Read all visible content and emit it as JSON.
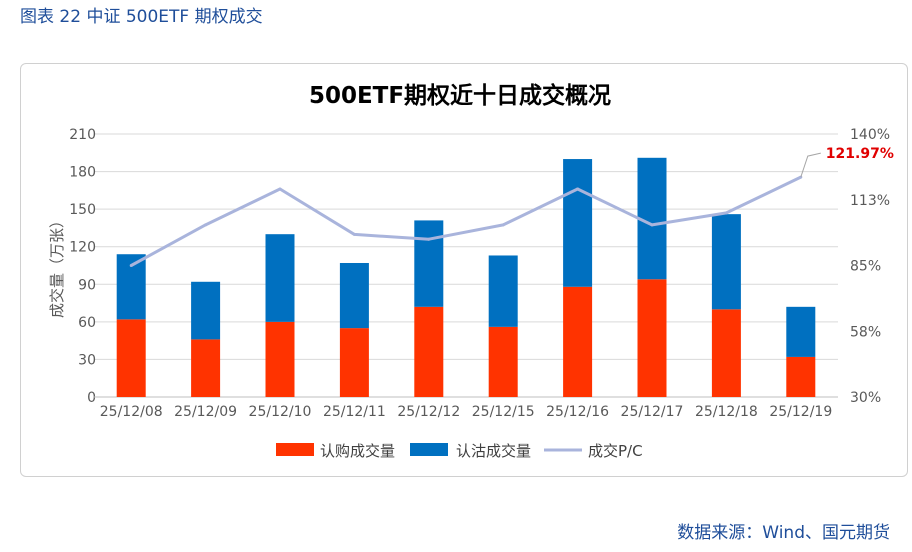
{
  "figure_caption": "图表 22 中证 500ETF 期权成交",
  "source_note": "数据来源：Wind、国元期货",
  "colors": {
    "call": "#ff3300",
    "put": "#0070c0",
    "pc_line": "#a9b4dc",
    "pc_label": "#e00000",
    "caption": "#1f4e9a"
  },
  "chart_data": {
    "type": "bar",
    "stacked": true,
    "title": "500ETF期权近十日成交概况",
    "ylabel": "成交量（万张）",
    "categories": [
      "25/12/08",
      "25/12/09",
      "25/12/10",
      "25/12/11",
      "25/12/12",
      "25/12/15",
      "25/12/16",
      "25/12/17",
      "25/12/18",
      "25/12/19"
    ],
    "series": [
      {
        "name": "认购成交量",
        "axis": "left",
        "values": [
          62,
          46,
          60,
          55,
          72,
          56,
          88,
          94,
          70,
          32
        ]
      },
      {
        "name": "认沽成交量",
        "axis": "left",
        "values": [
          52,
          46,
          70,
          52,
          69,
          57,
          102,
          97,
          76,
          40
        ]
      },
      {
        "name": "成交P/C",
        "type": "line",
        "axis": "right",
        "unit": "%",
        "values": [
          85,
          102,
          117,
          98,
          96,
          102,
          117,
          102,
          107,
          121.97
        ]
      }
    ],
    "y_left": {
      "lim": [
        0,
        210
      ],
      "ticks": [
        "0",
        "30",
        "60",
        "90",
        "120",
        "150",
        "180",
        "210"
      ]
    },
    "y_right": {
      "lim": [
        30,
        140
      ],
      "ticks": [
        "30%",
        "58%",
        "85%",
        "113%",
        "140%"
      ]
    },
    "annotation": {
      "text": "121.97%",
      "point_index": 9
    },
    "legend": {
      "position": "bottom",
      "entries": [
        "认购成交量",
        "认沽成交量",
        "成交P/C"
      ]
    }
  }
}
